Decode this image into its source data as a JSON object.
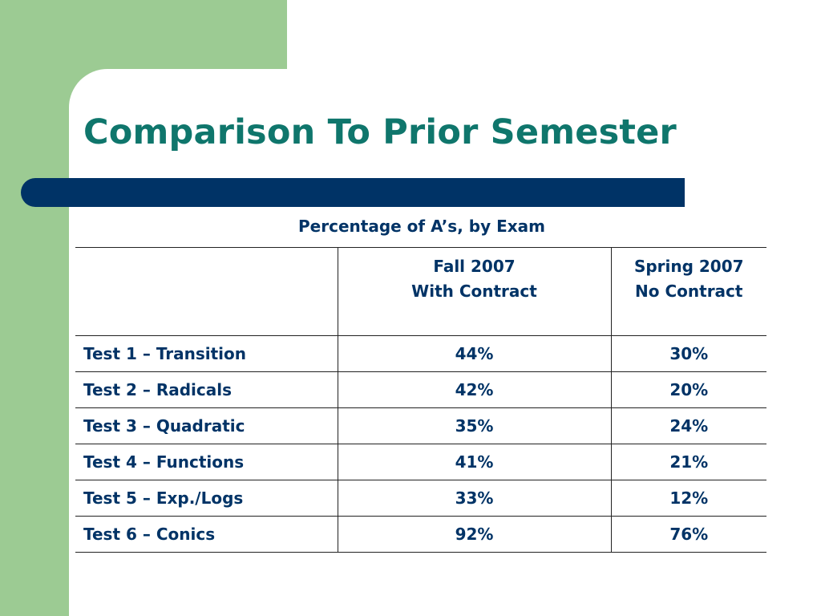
{
  "slide": {
    "title": "Comparison To Prior Semester",
    "table_caption": "Percentage of A’s, by Exam",
    "colors": {
      "title": "#0f766c",
      "text": "#003366",
      "accent_bar": "#003366",
      "green_panel": "#9ccb93"
    }
  },
  "table": {
    "columns": [
      {
        "line1": "",
        "line2": ""
      },
      {
        "line1": "Fall 2007",
        "line2": "With Contract"
      },
      {
        "line1": "Spring 2007",
        "line2": "No Contract"
      }
    ],
    "rows": [
      {
        "label": "Test 1 – Transition",
        "fall": "44%",
        "spring": "30%"
      },
      {
        "label": "Test 2 – Radicals",
        "fall": "42%",
        "spring": "20%"
      },
      {
        "label": "Test 3 – Quadratic",
        "fall": "35%",
        "spring": "24%"
      },
      {
        "label": "Test 4 – Functions",
        "fall": "41%",
        "spring": "21%"
      },
      {
        "label": "Test 5 – Exp./Logs",
        "fall": "33%",
        "spring": "12%"
      },
      {
        "label": "Test 6 – Conics",
        "fall": "92%",
        "spring": "76%"
      }
    ]
  }
}
